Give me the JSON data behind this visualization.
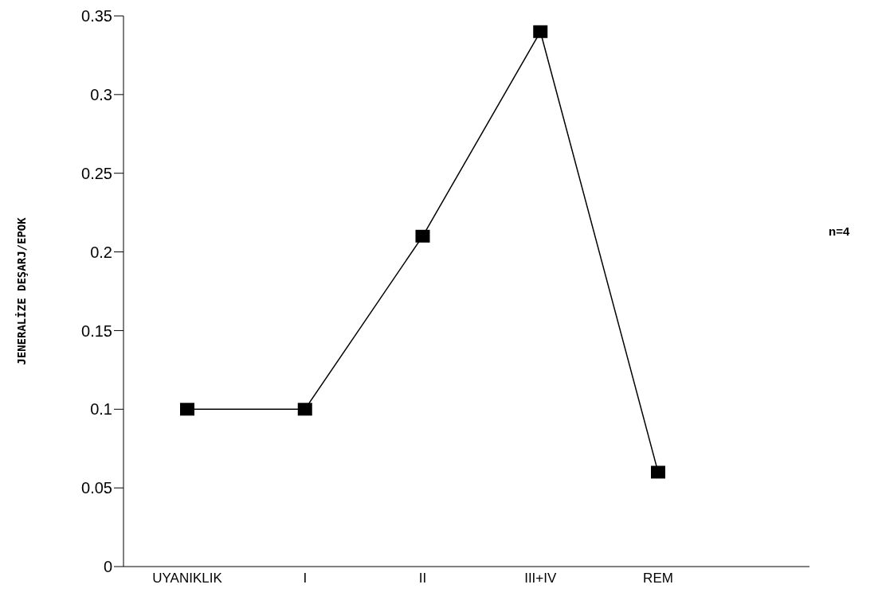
{
  "chart_data": {
    "type": "line",
    "ylabel": "JENERALİZE DEŞARJ/EPOK",
    "categories": [
      "UYANIKLIK",
      "I",
      "II",
      "III+IV",
      "REM"
    ],
    "series": [
      {
        "color": "#000000",
        "values": [
          0.1,
          0.1,
          0.21,
          0.34,
          0.06
        ]
      }
    ],
    "ylim": [
      0,
      0.35
    ],
    "yticks": [
      0,
      0.05,
      0.1,
      0.15,
      0.2,
      0.25,
      0.3,
      0.35
    ],
    "marker": "square",
    "line_style": "solid",
    "grid": false,
    "legend": false,
    "annotations": [
      "n=4"
    ]
  }
}
